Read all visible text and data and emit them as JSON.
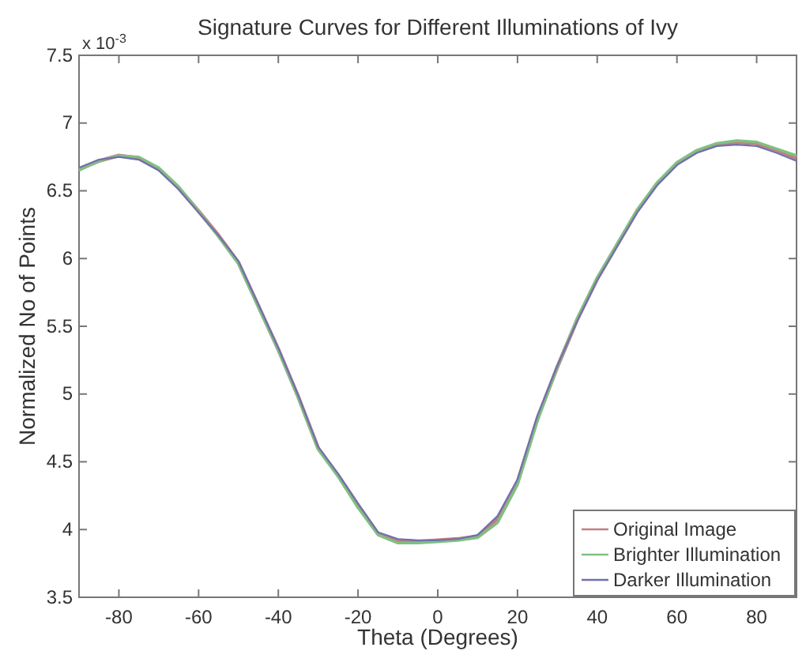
{
  "chart_data": {
    "type": "line",
    "title": "Signature Curves for Different Illuminations of Ivy",
    "xlabel": "Theta (Degrees)",
    "ylabel": "Normalized No of Points",
    "annotations": [
      "x 10$^{-3}$"
    ],
    "x": [
      -90,
      -85,
      -80,
      -75,
      -70,
      -65,
      -60,
      -55,
      -50,
      -45,
      -40,
      -35,
      -30,
      -25,
      -20,
      -15,
      -10,
      -5,
      0,
      5,
      10,
      15,
      20,
      25,
      30,
      35,
      40,
      45,
      50,
      55,
      60,
      65,
      70,
      75,
      80,
      85,
      90
    ],
    "xlim": [
      -90,
      90
    ],
    "xticks": [
      -80,
      -60,
      -40,
      -20,
      0,
      20,
      40,
      60,
      80
    ],
    "ylim": [
      3.5,
      7.5
    ],
    "yticks": [
      3.5,
      4,
      4.5,
      5,
      5.5,
      6,
      6.5,
      7,
      7.5
    ],
    "grid": false,
    "legend": "bottom right",
    "line_style": "solid",
    "marker": "none",
    "series": [
      {
        "name": "Original Image",
        "color": "#c08080",
        "values": [
          6.66,
          6.72,
          6.76,
          6.74,
          6.66,
          6.52,
          6.35,
          6.17,
          5.97,
          5.65,
          5.33,
          4.98,
          4.6,
          4.4,
          4.18,
          3.97,
          3.92,
          3.91,
          3.92,
          3.93,
          3.95,
          4.08,
          4.35,
          4.82,
          5.2,
          5.55,
          5.85,
          6.1,
          6.35,
          6.55,
          6.7,
          6.79,
          6.84,
          6.86,
          6.85,
          6.8,
          6.74
        ]
      },
      {
        "name": "Brighter Illumination",
        "color": "#80c080",
        "values": [
          6.65,
          6.72,
          6.76,
          6.75,
          6.67,
          6.53,
          6.35,
          6.16,
          5.96,
          5.64,
          5.32,
          4.97,
          4.59,
          4.39,
          4.16,
          3.96,
          3.9,
          3.9,
          3.91,
          3.92,
          3.94,
          4.05,
          4.33,
          4.8,
          5.2,
          5.56,
          5.86,
          6.11,
          6.36,
          6.56,
          6.71,
          6.8,
          6.85,
          6.87,
          6.86,
          6.81,
          6.76
        ]
      },
      {
        "name": "Darker Illumination",
        "color": "#7070b0",
        "values": [
          6.67,
          6.73,
          6.75,
          6.73,
          6.65,
          6.51,
          6.34,
          6.17,
          5.98,
          5.66,
          5.34,
          4.99,
          4.61,
          4.41,
          4.19,
          3.98,
          3.93,
          3.92,
          3.92,
          3.93,
          3.96,
          4.1,
          4.37,
          4.84,
          5.21,
          5.54,
          5.84,
          6.09,
          6.34,
          6.54,
          6.69,
          6.78,
          6.83,
          6.84,
          6.83,
          6.78,
          6.72
        ]
      }
    ]
  }
}
